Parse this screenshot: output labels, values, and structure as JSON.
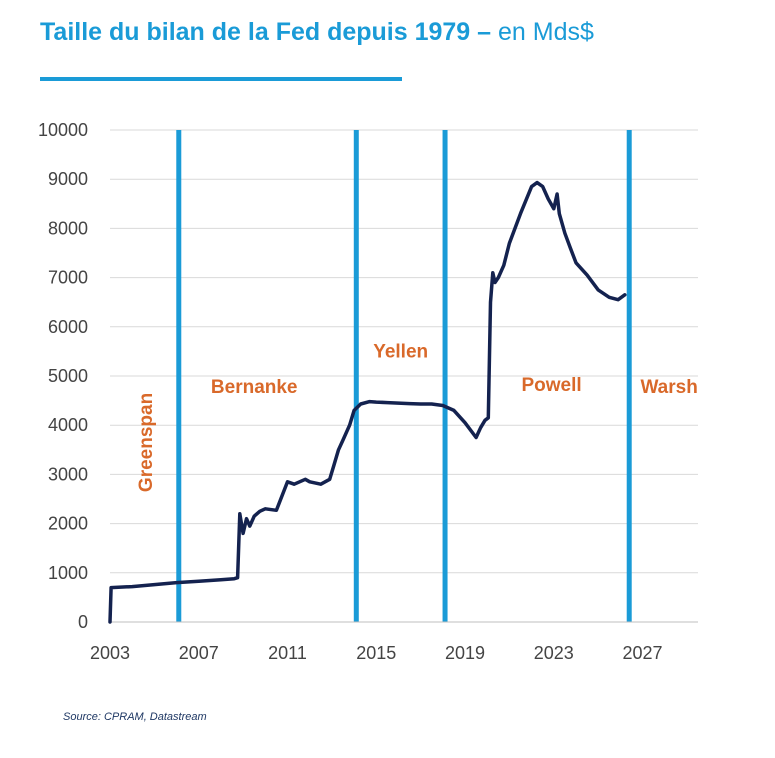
{
  "title": {
    "main": "Taille du bilan de la Fed depuis 1979 –",
    "unit": " en Mds$"
  },
  "source": "Source: CPRAM, Datastream",
  "colors": {
    "title": "#1a9bd7",
    "line": "#14224f",
    "divider": "#1a9bd7",
    "era_label": "#d9692a",
    "grid": "#d9d9d9"
  },
  "chart_data": {
    "type": "line",
    "title": "Taille du bilan de la Fed depuis 1979 – en Mds$",
    "xlabel": "",
    "ylabel": "",
    "xlim": [
      2003,
      2029.5
    ],
    "ylim": [
      0,
      10000
    ],
    "x_ticks": [
      2003,
      2007,
      2011,
      2015,
      2019,
      2023,
      2027
    ],
    "y_ticks": [
      0,
      1000,
      2000,
      3000,
      4000,
      5000,
      6000,
      7000,
      8000,
      9000,
      10000
    ],
    "grid": true,
    "dividers": [
      2006.1,
      2014.1,
      2018.1,
      2026.4
    ],
    "eras": [
      {
        "name": "Greenspan",
        "x": 2004.9,
        "y": 3650,
        "rotated": true
      },
      {
        "name": "Bernanke",
        "x": 2009.5,
        "y": 4650
      },
      {
        "name": "Yellen",
        "x": 2016.1,
        "y": 5380
      },
      {
        "name": "Powell",
        "x": 2022.9,
        "y": 4700
      },
      {
        "name": "Warsh",
        "x": 2028.2,
        "y": 4650
      }
    ],
    "series": [
      {
        "x": [
          2003.0,
          2003.05,
          2004.0,
          2005.0,
          2006.0,
          2007.0,
          2008.0,
          2008.6,
          2008.75,
          2008.85,
          2009.0,
          2009.15,
          2009.3,
          2009.5,
          2009.75,
          2010.0,
          2010.5,
          2011.0,
          2011.3,
          2011.8,
          2012.0,
          2012.5,
          2012.9,
          2013.1,
          2013.3,
          2013.5,
          2013.8,
          2014.0,
          2014.3,
          2014.7,
          2015.0,
          2015.5,
          2016.0,
          2016.5,
          2017.0,
          2017.5,
          2018.0,
          2018.5,
          2019.0,
          2019.5,
          2019.7,
          2019.9,
          2020.05,
          2020.15,
          2020.25,
          2020.35,
          2020.5,
          2020.75,
          2021.0,
          2021.5,
          2022.0,
          2022.25,
          2022.5,
          2022.75,
          2023.0,
          2023.15,
          2023.25,
          2023.5,
          2023.75,
          2024.0,
          2024.5,
          2025.0,
          2025.5,
          2025.9,
          2026.2
        ],
        "y": [
          0,
          700,
          720,
          760,
          800,
          830,
          860,
          880,
          900,
          2200,
          1800,
          2100,
          1950,
          2150,
          2250,
          2300,
          2270,
          2850,
          2800,
          2900,
          2850,
          2800,
          2900,
          3200,
          3500,
          3700,
          4000,
          4300,
          4430,
          4480,
          4470,
          4460,
          4450,
          4440,
          4430,
          4430,
          4400,
          4300,
          4050,
          3750,
          3950,
          4100,
          4150,
          6500,
          7100,
          6900,
          7000,
          7250,
          7700,
          8300,
          8850,
          8930,
          8850,
          8600,
          8400,
          8700,
          8300,
          7900,
          7600,
          7300,
          7050,
          6750,
          6600,
          6550,
          6650
        ]
      }
    ]
  }
}
